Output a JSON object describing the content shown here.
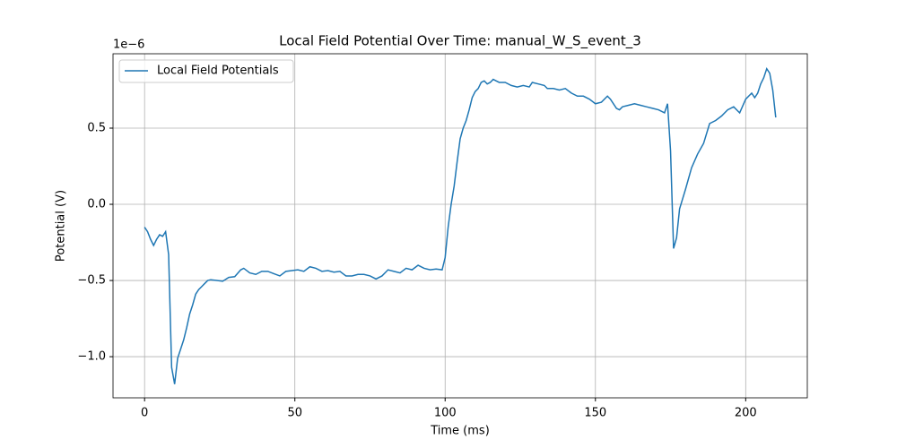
{
  "chart_data": {
    "type": "line",
    "title": "Local Field Potential Over Time: manual_W_S_event_3",
    "x_label": "Time (ms)",
    "y_label": "Potential (V)",
    "y_offset_label": "1e−6",
    "x": [
      0,
      1,
      2,
      3,
      4,
      5,
      6,
      7,
      8,
      9,
      10,
      11,
      12,
      13,
      14,
      15,
      16,
      17,
      18,
      19,
      20,
      21,
      22,
      24,
      26,
      28,
      30,
      32,
      33,
      35,
      37,
      39,
      41,
      43,
      45,
      47,
      49,
      51,
      53,
      55,
      57,
      59,
      61,
      63,
      65,
      67,
      69,
      71,
      73,
      75,
      77,
      79,
      81,
      83,
      85,
      87,
      89,
      91,
      93,
      95,
      97,
      99,
      100,
      101,
      102,
      103,
      104,
      105,
      106,
      107,
      108,
      109,
      110,
      111,
      112,
      113,
      114,
      115,
      116,
      117,
      118,
      120,
      122,
      124,
      126,
      128,
      129,
      131,
      133,
      134,
      136,
      138,
      140,
      142,
      144,
      146,
      148,
      150,
      152,
      154,
      155,
      157,
      158,
      159,
      161,
      163,
      165,
      167,
      169,
      171,
      173,
      174,
      175,
      176,
      177,
      178,
      180,
      182,
      184,
      186,
      188,
      190,
      192,
      194,
      196,
      198,
      200,
      202,
      203,
      204,
      205,
      206,
      207,
      208,
      209,
      210
    ],
    "series": [
      {
        "name": "Local Field Potentials",
        "color": "#1f77b4",
        "values": [
          -0.15,
          -0.18,
          -0.23,
          -0.27,
          -0.23,
          -0.2,
          -0.21,
          -0.18,
          -0.33,
          -1.07,
          -1.18,
          -1.01,
          -0.95,
          -0.89,
          -0.81,
          -0.72,
          -0.66,
          -0.59,
          -0.56,
          -0.54,
          -0.52,
          -0.5,
          -0.495,
          -0.5,
          -0.505,
          -0.48,
          -0.475,
          -0.43,
          -0.42,
          -0.45,
          -0.46,
          -0.44,
          -0.44,
          -0.455,
          -0.47,
          -0.44,
          -0.435,
          -0.43,
          -0.44,
          -0.41,
          -0.42,
          -0.44,
          -0.435,
          -0.445,
          -0.44,
          -0.47,
          -0.47,
          -0.46,
          -0.46,
          -0.47,
          -0.49,
          -0.47,
          -0.43,
          -0.44,
          -0.45,
          -0.42,
          -0.43,
          -0.4,
          -0.42,
          -0.43,
          -0.425,
          -0.43,
          -0.35,
          -0.15,
          0.0,
          0.12,
          0.28,
          0.43,
          0.5,
          0.55,
          0.62,
          0.7,
          0.74,
          0.76,
          0.8,
          0.81,
          0.79,
          0.8,
          0.82,
          0.81,
          0.8,
          0.8,
          0.78,
          0.77,
          0.78,
          0.77,
          0.8,
          0.79,
          0.78,
          0.76,
          0.76,
          0.75,
          0.76,
          0.73,
          0.71,
          0.71,
          0.69,
          0.66,
          0.67,
          0.71,
          0.69,
          0.63,
          0.62,
          0.64,
          0.65,
          0.66,
          0.65,
          0.64,
          0.63,
          0.62,
          0.6,
          0.66,
          0.35,
          -0.29,
          -0.22,
          -0.03,
          0.1,
          0.24,
          0.33,
          0.4,
          0.53,
          0.55,
          0.58,
          0.62,
          0.64,
          0.6,
          0.69,
          0.73,
          0.7,
          0.73,
          0.79,
          0.83,
          0.89,
          0.86,
          0.75,
          0.57
        ]
      }
    ],
    "xlim": [
      -10.5,
      220.5
    ],
    "ylim": [
      -1.27,
      0.988
    ],
    "xticks": [
      0,
      50,
      100,
      150,
      200
    ],
    "yticks": [
      {
        "value": -1.0,
        "label": "−1.0"
      },
      {
        "value": -0.5,
        "label": "−0.5"
      },
      {
        "value": 0.0,
        "label": "0.0"
      },
      {
        "value": 0.5,
        "label": "0.5"
      }
    ],
    "grid": true,
    "legend": "upper-left"
  }
}
